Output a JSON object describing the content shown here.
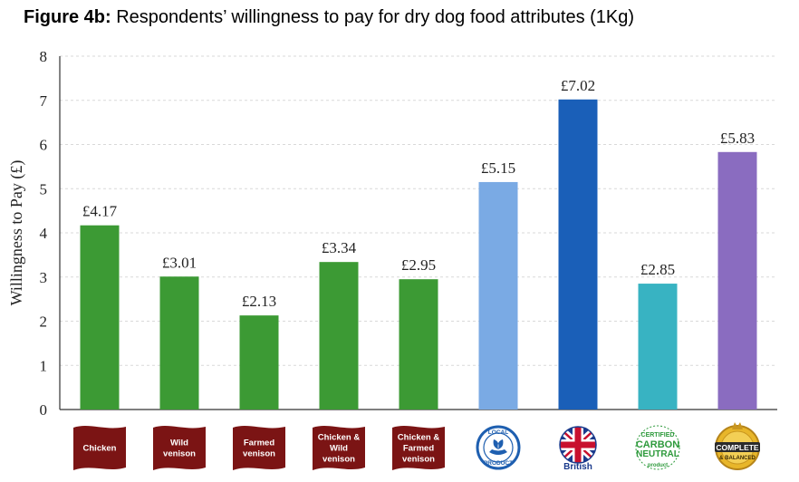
{
  "title": {
    "prefix": "Figure 4b:",
    "text": " Respondents’ willingness to pay for dry dog food attributes (1Kg)"
  },
  "chart_data": {
    "type": "bar",
    "ylabel": "Willingness to Pay (£)",
    "xlabel": "",
    "ylim": [
      0,
      8
    ],
    "yticks": [
      0,
      1,
      2,
      3,
      4,
      5,
      6,
      7,
      8
    ],
    "grid": true,
    "value_prefix": "£",
    "categories": [
      {
        "label": [
          "Chicken"
        ],
        "kind": "flag",
        "value": 4.17,
        "value_label": "£4.17",
        "color": "#3c9a34"
      },
      {
        "label": [
          "Wild",
          "venison"
        ],
        "kind": "flag",
        "value": 3.01,
        "value_label": "£3.01",
        "color": "#3c9a34"
      },
      {
        "label": [
          "Farmed",
          "venison"
        ],
        "kind": "flag",
        "value": 2.13,
        "value_label": "£2.13",
        "color": "#3c9a34"
      },
      {
        "label": [
          "Chicken &",
          "Wild",
          "venison"
        ],
        "kind": "flag",
        "value": 3.34,
        "value_label": "£3.34",
        "color": "#3c9a34"
      },
      {
        "label": [
          "Chicken &",
          "Farmed",
          "venison"
        ],
        "kind": "flag",
        "value": 2.95,
        "value_label": "£2.95",
        "color": "#3c9a34"
      },
      {
        "label": [
          "LOCAL",
          "PRODUCT"
        ],
        "kind": "local-product-badge",
        "value": 5.15,
        "value_label": "£5.15",
        "color": "#7aaae4"
      },
      {
        "label": [
          "British"
        ],
        "kind": "union-flag-badge",
        "value": 7.02,
        "value_label": "£7.02",
        "color": "#1a5fb8"
      },
      {
        "label": [
          "CERTIFIED",
          "CARBON",
          "NEUTRAL",
          "product"
        ],
        "kind": "carbon-neutral-badge",
        "value": 2.85,
        "value_label": "£2.85",
        "color": "#38b3c2"
      },
      {
        "label": [
          "COMPLETE",
          "& BALANCED"
        ],
        "kind": "complete-balanced-badge",
        "value": 5.83,
        "value_label": "£5.83",
        "color": "#8a6cc0"
      }
    ]
  },
  "colors": {
    "flag_maroon": "#7b1414",
    "axis": "#333333",
    "grid": "#d9d9d9"
  }
}
